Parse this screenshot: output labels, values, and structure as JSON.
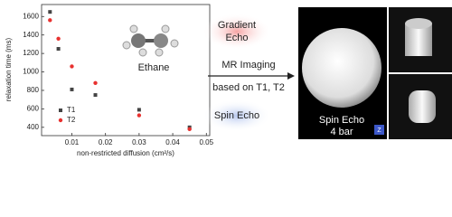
{
  "chart_data": {
    "type": "scatter",
    "y_label": "relaxation time (ms)",
    "x_label": "non-restricted diffusion (cm²/s)",
    "annotation": "Ethane",
    "xlim": [
      0.001,
      0.051
    ],
    "xticks": [
      0.01,
      0.02,
      0.03,
      0.04,
      0.05
    ],
    "ylim": [
      310,
      1730
    ],
    "yticks": [
      400,
      600,
      800,
      1000,
      1200,
      1400,
      1600
    ],
    "series": [
      {
        "name": "T1",
        "color": "#444444",
        "marker": "square",
        "x": [
          0.0035,
          0.006,
          0.01,
          0.017,
          0.03,
          0.045
        ],
        "values": [
          1650,
          1250,
          810,
          750,
          590,
          400
        ]
      },
      {
        "name": "T2",
        "color": "#e8312f",
        "marker": "circle",
        "x": [
          0.0035,
          0.006,
          0.01,
          0.017,
          0.03,
          0.045
        ],
        "values": [
          1560,
          1360,
          1060,
          880,
          530,
          380
        ]
      }
    ]
  },
  "scheme": {
    "top_method": [
      "Gradient",
      "Echo"
    ],
    "arrow_top": "MR Imaging",
    "arrow_bottom": "based on T1, T2",
    "bottom_method": "Spin Echo",
    "image_label": [
      "Spin Echo",
      "4 bar"
    ],
    "icon": "Z"
  }
}
